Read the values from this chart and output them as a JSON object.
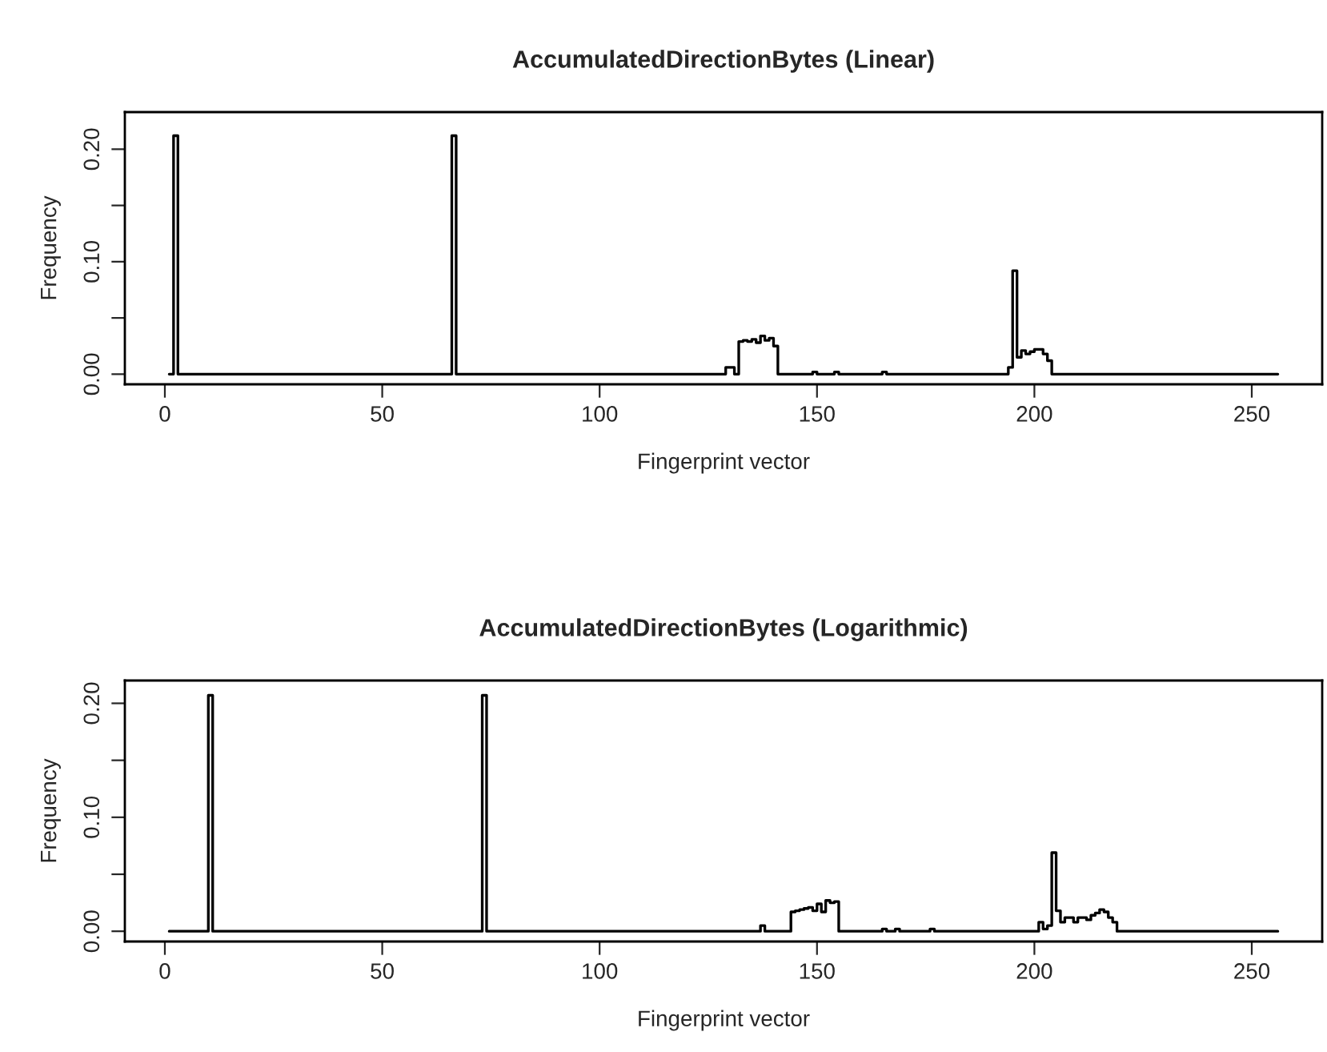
{
  "chart_data": [
    {
      "type": "step",
      "title": "AccumulatedDirectionBytes (Linear)",
      "xlabel": "Fingerprint vector",
      "ylabel": "Frequency",
      "series": [
        {
          "color": "#000000",
          "x": [
            1,
            2,
            3,
            66,
            67,
            129,
            131,
            132,
            133,
            134,
            135,
            136,
            137,
            138,
            139,
            140,
            141,
            149,
            150,
            154,
            155,
            165,
            166,
            194,
            195,
            196,
            197,
            198,
            199,
            200,
            201,
            202,
            203,
            204,
            256
          ],
          "values": [
            0,
            0.212,
            0,
            0.212,
            0,
            0.006,
            0,
            0.029,
            0.03,
            0.029,
            0.031,
            0.028,
            0.034,
            0.03,
            0.032,
            0.025,
            0,
            0.002,
            0,
            0.002,
            0,
            0.002,
            0,
            0.006,
            0.092,
            0.015,
            0.021,
            0.018,
            0.02,
            0.022,
            0.022,
            0.018,
            0.012,
            0,
            0
          ]
        }
      ],
      "xlim": [
        -9.2,
        266.2
      ],
      "ylim": [
        -0.009,
        0.233
      ],
      "xticks": [
        0,
        50,
        100,
        150,
        200,
        250
      ],
      "yticks": [
        {
          "value": 0,
          "label": "0.00"
        },
        {
          "value": 0.05,
          "label": null
        },
        {
          "value": 0.1,
          "label": "0.10"
        },
        {
          "value": 0.15,
          "label": null
        },
        {
          "value": 0.2,
          "label": "0.20"
        }
      ],
      "grid": false,
      "legend": false
    },
    {
      "type": "step",
      "title": "AccumulatedDirectionBytes (Logarithmic)",
      "xlabel": "Fingerprint vector",
      "ylabel": "Frequency",
      "series": [
        {
          "color": "#000000",
          "x": [
            1,
            10,
            11,
            73,
            74,
            137,
            138,
            144,
            145,
            146,
            147,
            148,
            149,
            150,
            151,
            152,
            153,
            154,
            155,
            165,
            166,
            168,
            169,
            176,
            177,
            201,
            202,
            203,
            204,
            205,
            206,
            207,
            208,
            209,
            210,
            211,
            212,
            213,
            214,
            215,
            216,
            217,
            218,
            219,
            256
          ],
          "values": [
            0,
            0.207,
            0,
            0.207,
            0,
            0.005,
            0,
            0.017,
            0.018,
            0.019,
            0.02,
            0.021,
            0.018,
            0.024,
            0.017,
            0.027,
            0.025,
            0.026,
            0,
            0.002,
            0,
            0.002,
            0,
            0.002,
            0,
            0.008,
            0.002,
            0.005,
            0.069,
            0.018,
            0.008,
            0.012,
            0.012,
            0.008,
            0.012,
            0.012,
            0.01,
            0.014,
            0.016,
            0.019,
            0.017,
            0.012,
            0.008,
            0,
            0
          ]
        }
      ],
      "xlim": [
        -9.2,
        266.2
      ],
      "ylim": [
        -0.009,
        0.22
      ],
      "xticks": [
        0,
        50,
        100,
        150,
        200,
        250
      ],
      "yticks": [
        {
          "value": 0,
          "label": "0.00"
        },
        {
          "value": 0.05,
          "label": null
        },
        {
          "value": 0.1,
          "label": "0.10"
        },
        {
          "value": 0.15,
          "label": null
        },
        {
          "value": 0.2,
          "label": "0.20"
        }
      ],
      "grid": false,
      "legend": false
    }
  ]
}
